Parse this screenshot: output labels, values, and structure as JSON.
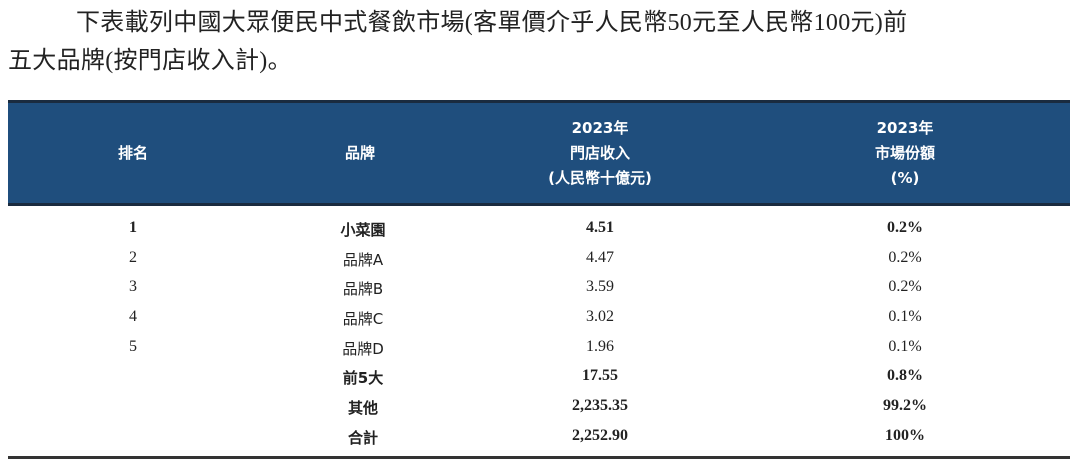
{
  "intro": {
    "line1": "下表載列中國大眾便民中式餐飲市場(客單價介乎人民幣50元至人民幣100元)前",
    "line2": "五大品牌(按門店收入計)。"
  },
  "table": {
    "header_bg": "#1f4e7d",
    "headers": {
      "rank": "排名",
      "brand": "品牌",
      "revenue": [
        "2023年",
        "門店收入",
        "(人民幣十億元)"
      ],
      "share": [
        "2023年",
        "市場份額",
        "(%)"
      ]
    },
    "rows": [
      {
        "rank": "1",
        "brand": "小菜園",
        "revenue": "4.51",
        "share": "0.2%",
        "bold": true
      },
      {
        "rank": "2",
        "brand": "品牌A",
        "revenue": "4.47",
        "share": "0.2%",
        "bold": false
      },
      {
        "rank": "3",
        "brand": "品牌B",
        "revenue": "3.59",
        "share": "0.2%",
        "bold": false
      },
      {
        "rank": "4",
        "brand": "品牌C",
        "revenue": "3.02",
        "share": "0.1%",
        "bold": false
      },
      {
        "rank": "5",
        "brand": "品牌D",
        "revenue": "1.96",
        "share": "0.1%",
        "bold": false
      },
      {
        "rank": "",
        "brand": "前5大",
        "revenue": "17.55",
        "share": "0.8%",
        "bold": true
      },
      {
        "rank": "",
        "brand": "其他",
        "revenue": "2,235.35",
        "share": "99.2%",
        "bold": true
      },
      {
        "rank": "",
        "brand": "合計",
        "revenue": "2,252.90",
        "share": "100%",
        "bold": true
      }
    ]
  }
}
